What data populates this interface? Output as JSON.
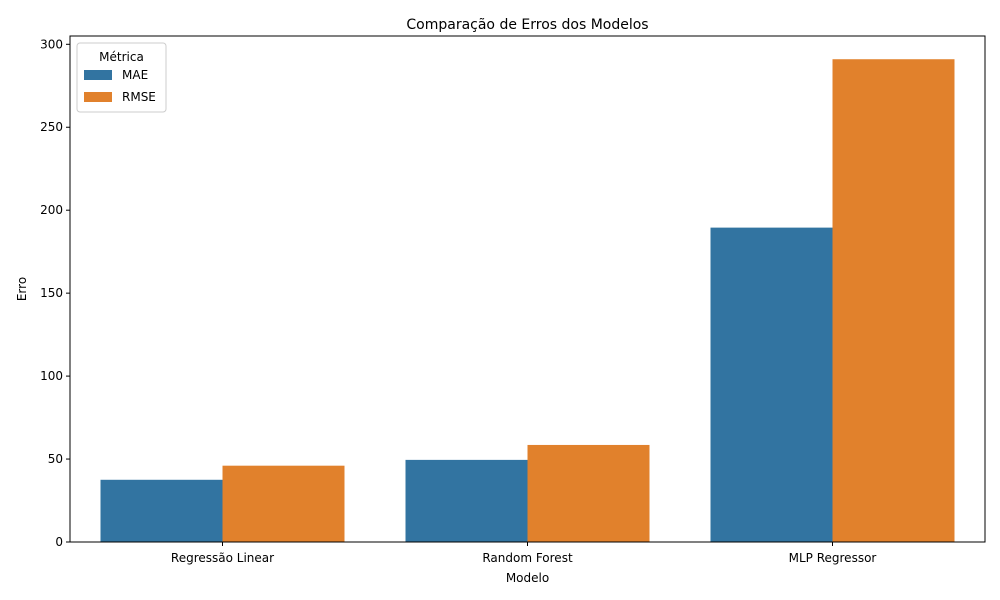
{
  "chart_data": {
    "type": "bar",
    "title": "Comparação de Erros dos Modelos",
    "xlabel": "Modelo",
    "ylabel": "Erro",
    "categories": [
      "Regressão Linear",
      "Random Forest",
      "MLP Regressor"
    ],
    "series": [
      {
        "name": "MAE",
        "color": "#3274a1",
        "values": [
          37.5,
          49.5,
          189.5
        ]
      },
      {
        "name": "RMSE",
        "color": "#e1812c",
        "values": [
          46.0,
          58.5,
          291.0
        ]
      }
    ],
    "ylim": [
      0,
      305
    ],
    "yticks": [
      0,
      50,
      100,
      150,
      200,
      250,
      300
    ],
    "grid": false,
    "legend": {
      "title": "Métrica",
      "placement": "top-left"
    }
  }
}
